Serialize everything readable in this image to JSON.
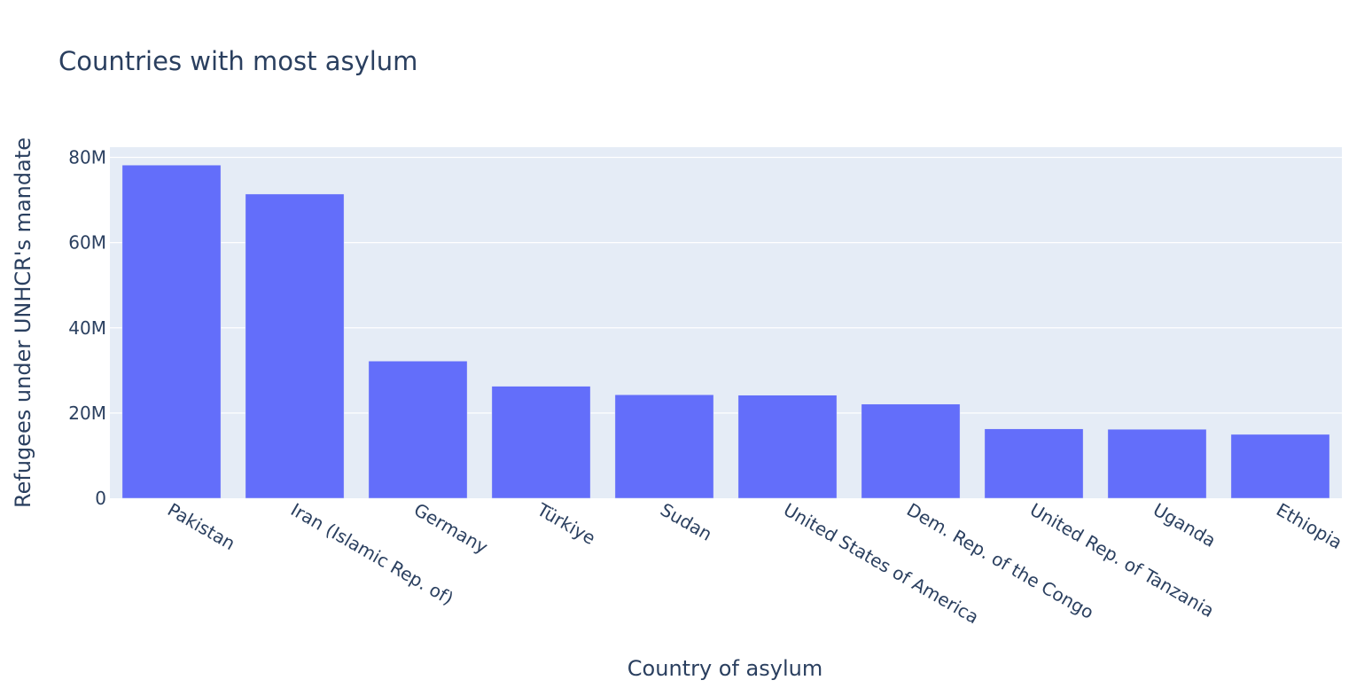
{
  "chart_data": {
    "type": "bar",
    "title": "Countries with most asylum",
    "xlabel": "Country of asylum",
    "ylabel": "Refugees under UNHCR's mandate",
    "categories": [
      "Pakistan",
      "Iran (Islamic Rep. of)",
      "Germany",
      "Türkiye",
      "Sudan",
      "United States of America",
      "Dem. Rep. of the Congo",
      "United Rep. of Tanzania",
      "Uganda",
      "Ethiopia"
    ],
    "values": [
      78200000,
      71400000,
      32200000,
      26300000,
      24300000,
      24200000,
      22100000,
      16300000,
      16200000,
      15000000
    ],
    "ylim": [
      0,
      82400000
    ],
    "yticks": [
      0,
      20000000,
      40000000,
      60000000,
      80000000
    ],
    "ytick_labels": [
      "0",
      "20M",
      "40M",
      "60M",
      "80M"
    ],
    "bar_color": "#636efa",
    "plot_bg": "#e5ecf6",
    "grid": true,
    "legend": false
  }
}
